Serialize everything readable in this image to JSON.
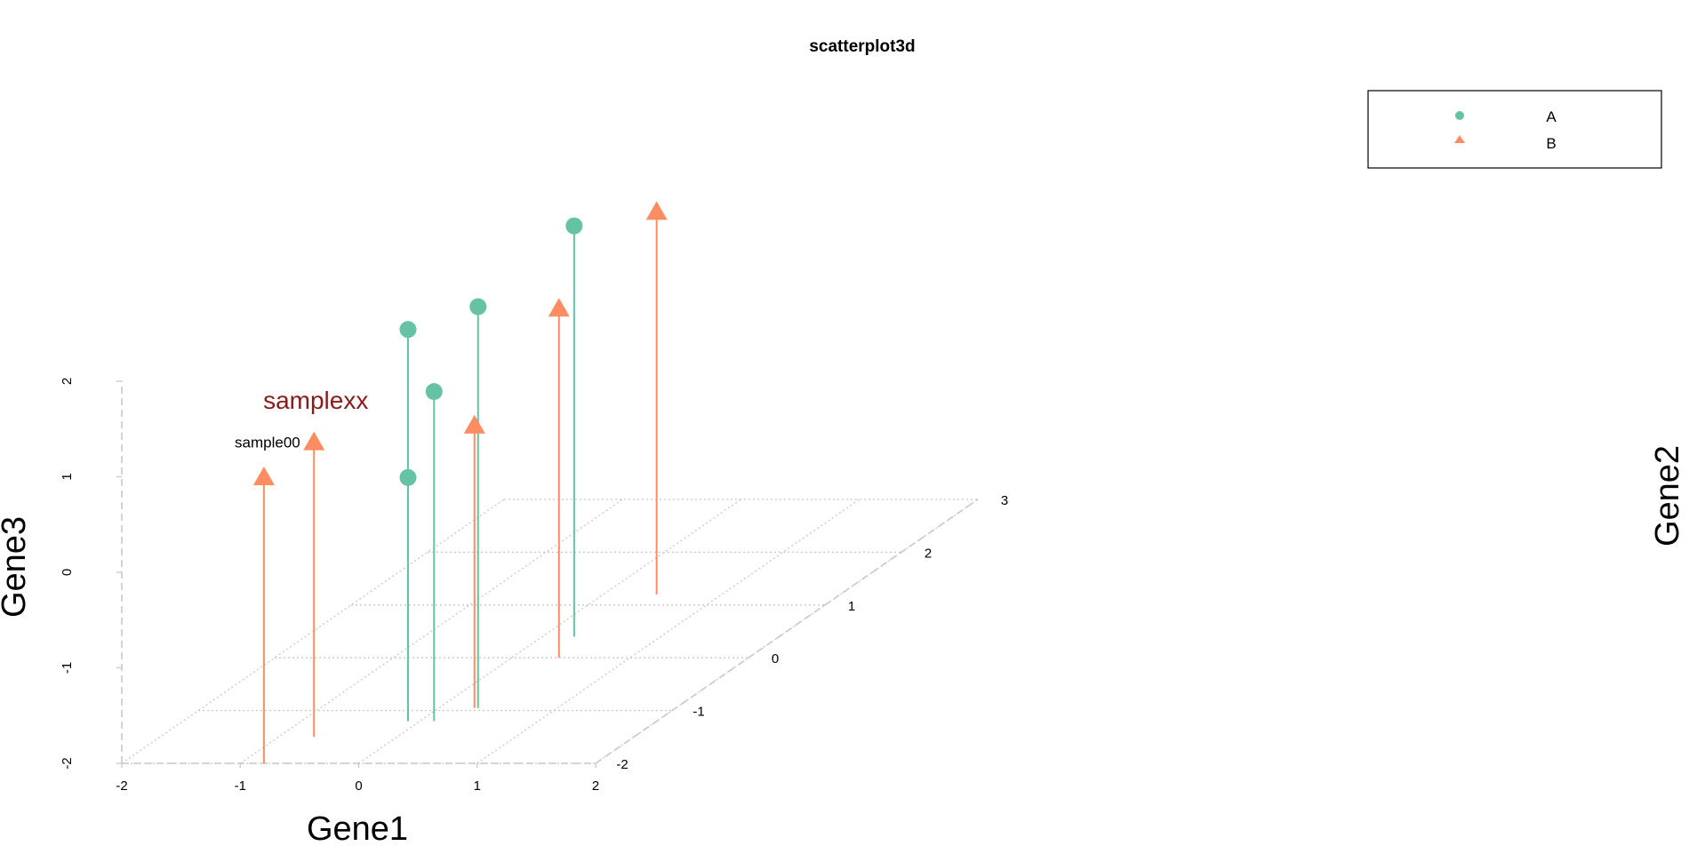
{
  "chart_data": {
    "type": "scatter",
    "title": "scatterplot3d",
    "xlabel": "Gene1",
    "ylabel": "Gene2",
    "zlabel": "Gene3",
    "xlim": [
      -2,
      2
    ],
    "ylim": [
      -2,
      3
    ],
    "zlim": [
      -2,
      2
    ],
    "x_ticks": [
      "-2",
      "-1",
      "0",
      "1",
      "2"
    ],
    "y_ticks": [
      "-2",
      "-1",
      "0",
      "1",
      "2",
      "3"
    ],
    "z_ticks": [
      "-2",
      "-1",
      "0",
      "1",
      "2"
    ],
    "grid": true,
    "drop_lines": true,
    "legend": {
      "position": "top-right",
      "entries": [
        {
          "label": "A",
          "shape": "circle",
          "color": "#66c2a5"
        },
        {
          "label": "B",
          "shape": "triangle",
          "color": "#fc8d62"
        }
      ]
    },
    "series": [
      {
        "label": "A",
        "color": "#66c2a5",
        "shape": "circle",
        "points": [
          {
            "x": -0.1,
            "y": -1.2,
            "z": 2.1
          },
          {
            "x": -0.1,
            "y": -1.2,
            "z": 0.55
          },
          {
            "x": 0.33,
            "y": -0.95,
            "z": 2.2
          },
          {
            "x": 0.12,
            "y": -1.2,
            "z": 1.45
          },
          {
            "x": 0.27,
            "y": 0.4,
            "z": 2.3
          }
        ]
      },
      {
        "label": "B",
        "color": "#fc8d62",
        "shape": "triangle",
        "points": [
          {
            "x": -0.7,
            "y": -1.5,
            "z": 1.08
          },
          {
            "x": -0.8,
            "y": -2.0,
            "z": 0.99
          },
          {
            "x": 0.3,
            "y": -0.95,
            "z": 0.95
          },
          {
            "x": 0.4,
            "y": 0.0,
            "z": 1.65
          },
          {
            "x": 0.45,
            "y": 1.2,
            "z": 2.0
          }
        ]
      }
    ],
    "annotations": [
      {
        "text": "sample00",
        "series": 1,
        "point": 1,
        "size": "small",
        "color": "#000000"
      },
      {
        "text": "samplexx",
        "series": 1,
        "point": 0,
        "size": "large",
        "color": "#8b1a1a"
      }
    ]
  }
}
